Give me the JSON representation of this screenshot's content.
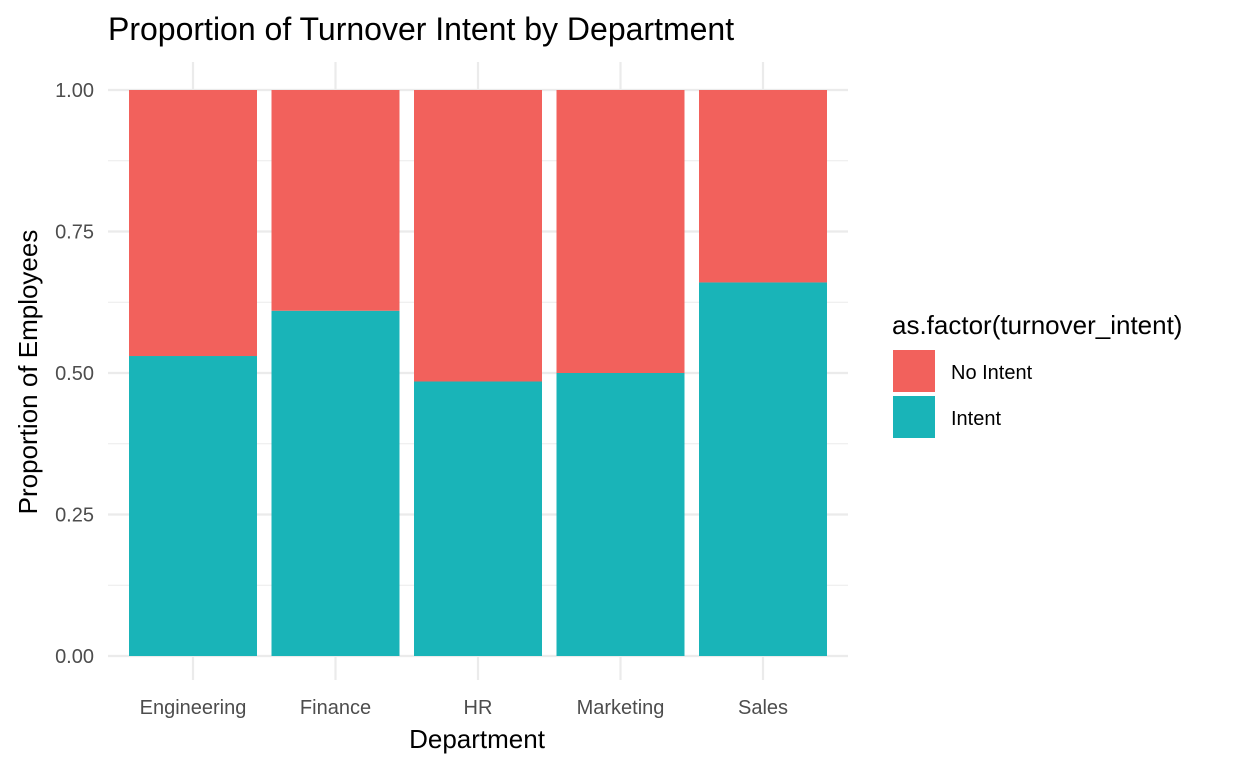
{
  "chart_data": {
    "type": "bar",
    "stacked": true,
    "title": "Proportion of Turnover Intent by Department",
    "xlabel": "Department",
    "ylabel": "Proportion of Employees",
    "categories": [
      "Engineering",
      "Finance",
      "HR",
      "Marketing",
      "Sales"
    ],
    "ylim": [
      0,
      1
    ],
    "yticks": [
      "0.00",
      "0.25",
      "0.50",
      "0.75",
      "1.00"
    ],
    "grid": true,
    "legend": {
      "title": "as.factor(turnover_intent)",
      "placement": "right"
    },
    "series": [
      {
        "name": "Intent",
        "color": "#19B4B8",
        "values": [
          0.53,
          0.61,
          0.485,
          0.5,
          0.66
        ]
      },
      {
        "name": "No Intent",
        "color": "#F2615C",
        "values": [
          0.47,
          0.39,
          0.515,
          0.5,
          0.34
        ]
      }
    ],
    "legend_order": [
      "No Intent",
      "Intent"
    ]
  }
}
